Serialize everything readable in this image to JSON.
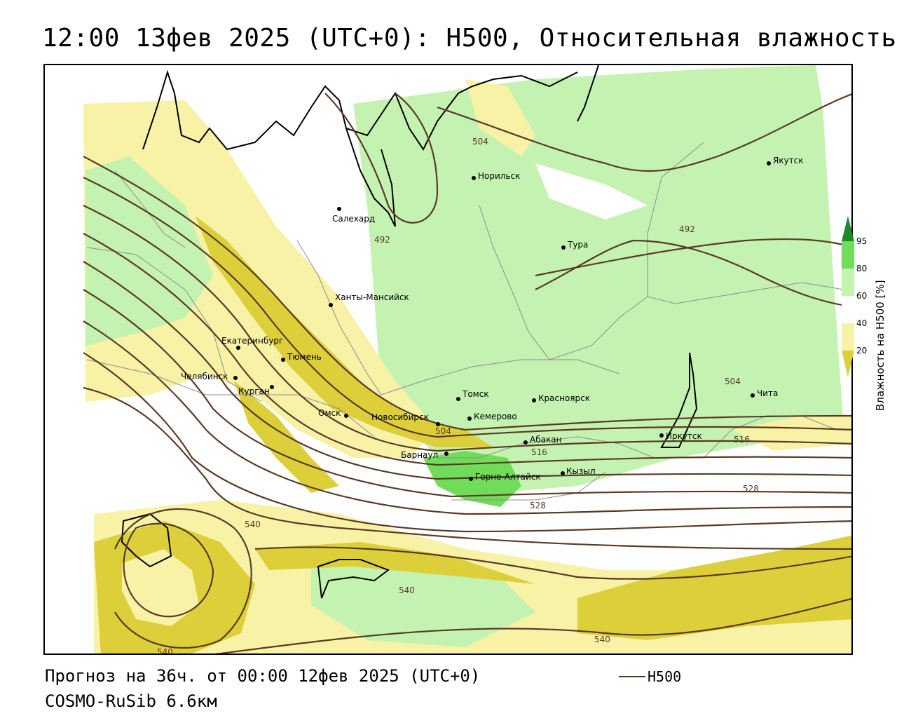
{
  "header": {
    "title": "12:00 13фев 2025 (UTC+0): H500, Относительная влажность"
  },
  "footer": {
    "forecast": "Прогноз на 36ч. от 00:00 12фев 2025 (UTC+0)",
    "model": "COSMO-RuSib 6.6км",
    "legend_label": "H500"
  },
  "colorbar": {
    "title": "Влажность на H500 [%]",
    "ticks": [
      "95",
      "80",
      "60",
      "40",
      "20"
    ],
    "colors": {
      "c20_40": "#f7f2a6",
      "c0_20": "#dccf3a",
      "c40_60": "#ffffff",
      "c60_80": "#c4f2b0",
      "c80_95": "#6fdc5a",
      "c95": "#1f8a2c"
    }
  },
  "contour_color": "#5a3a26",
  "contour_labels": [
    "504",
    "492",
    "492",
    "504",
    "504",
    "516",
    "516",
    "528",
    "528",
    "540",
    "540",
    "540",
    "540"
  ],
  "cities": [
    {
      "name": "Якутск"
    },
    {
      "name": "Норильск"
    },
    {
      "name": "Салехард"
    },
    {
      "name": "Тура"
    },
    {
      "name": "Ханты-Мансийск"
    },
    {
      "name": "Екатеринбург"
    },
    {
      "name": "Тюмень"
    },
    {
      "name": "Челябинск"
    },
    {
      "name": "Курган"
    },
    {
      "name": "Омск"
    },
    {
      "name": "Новосибирск"
    },
    {
      "name": "Томск"
    },
    {
      "name": "Кемерово"
    },
    {
      "name": "Красноярск"
    },
    {
      "name": "Абакан"
    },
    {
      "name": "Барнаул"
    },
    {
      "name": "Горно-Алтайск"
    },
    {
      "name": "Кызыл"
    },
    {
      "name": "Иркутск"
    },
    {
      "name": "Чита"
    }
  ]
}
